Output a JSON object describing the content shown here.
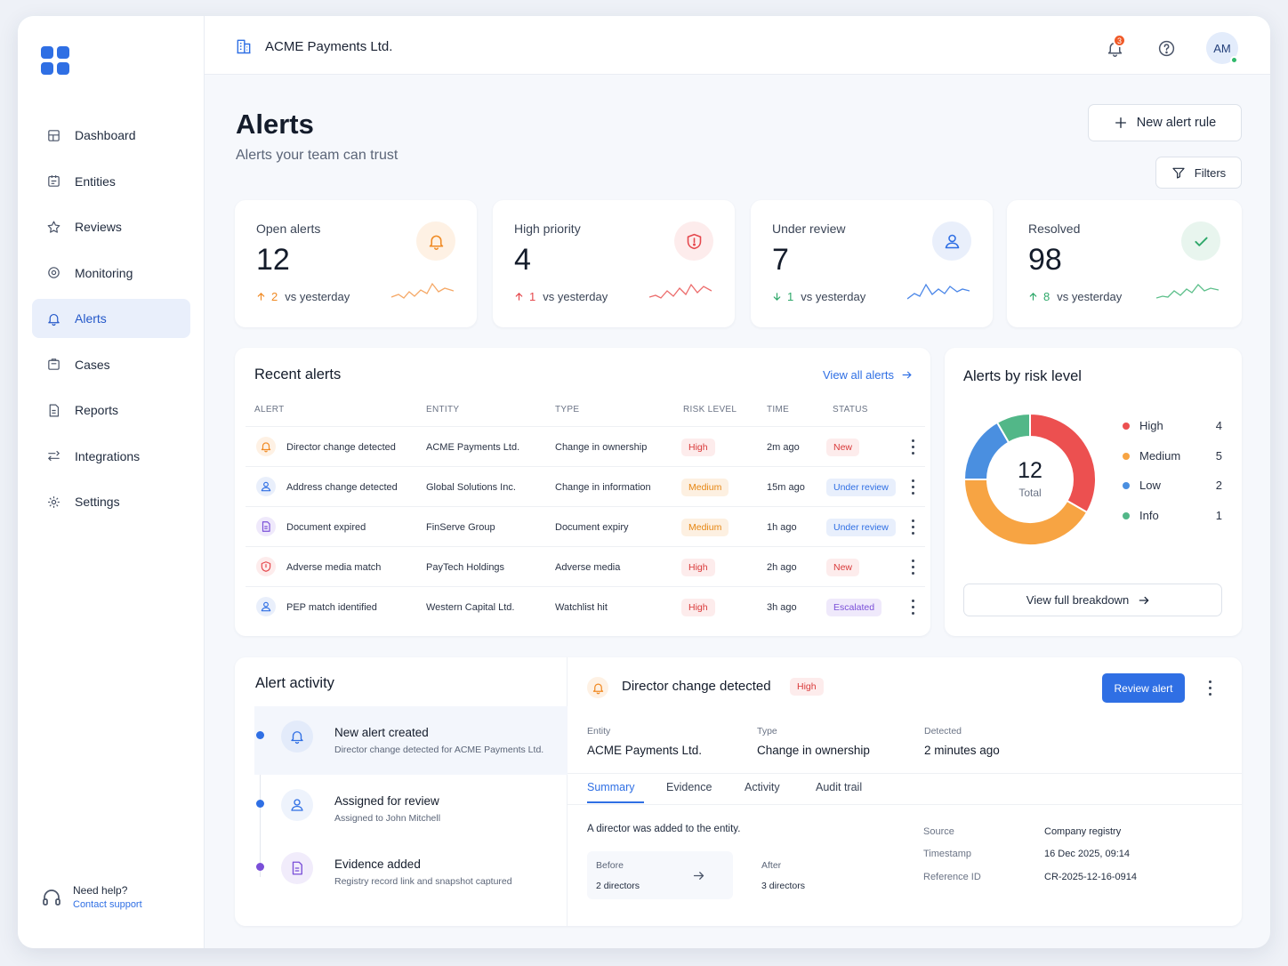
{
  "org": {
    "name": "ACME Payments Ltd."
  },
  "header": {
    "notification_count": "3",
    "avatar_initials": "AM"
  },
  "sidebar": {
    "items": [
      {
        "label": "Dashboard",
        "icon": "dashboard-icon"
      },
      {
        "label": "Entities",
        "icon": "building-icon"
      },
      {
        "label": "Reviews",
        "icon": "star-icon"
      },
      {
        "label": "Monitoring",
        "icon": "monitoring-icon"
      },
      {
        "label": "Alerts",
        "icon": "bell-icon",
        "active": true
      },
      {
        "label": "Cases",
        "icon": "briefcase-icon"
      },
      {
        "label": "Reports",
        "icon": "report-icon"
      },
      {
        "label": "Integrations",
        "icon": "integrations-icon"
      },
      {
        "label": "Settings",
        "icon": "gear-icon"
      }
    ],
    "help": {
      "title": "Need help?",
      "link": "Contact support"
    }
  },
  "page": {
    "title": "Alerts",
    "subtitle": "Alerts your team can trust",
    "new_rule_label": "New alert rule",
    "filters_label": "Filters"
  },
  "stats": [
    {
      "label": "Open alerts",
      "value": "12",
      "delta": "2",
      "compare": "vs yesterday",
      "direction": "up",
      "color": "#f08a24"
    },
    {
      "label": "High priority",
      "value": "4",
      "delta": "1",
      "compare": "vs yesterday",
      "direction": "up",
      "color": "#e5484d"
    },
    {
      "label": "Under review",
      "value": "7",
      "delta": "1",
      "compare": "vs yesterday",
      "direction": "down",
      "color": "#2f6fe4"
    },
    {
      "label": "Resolved",
      "value": "98",
      "delta": "8",
      "compare": "vs yesterday",
      "direction": "up",
      "color": "#2fa86a"
    }
  ],
  "recent": {
    "title": "Recent alerts",
    "view_all": "View all alerts",
    "columns": [
      "ALERT",
      "ENTITY",
      "TYPE",
      "RISK LEVEL",
      "TIME",
      "STATUS"
    ],
    "rows": [
      {
        "alert": "Director change detected",
        "entity": "ACME Payments Ltd.",
        "type": "Change in ownership",
        "risk": "High",
        "time": "2m ago",
        "status": "New",
        "icon": "bell-icon"
      },
      {
        "alert": "Address change detected",
        "entity": "Global Solutions Inc.",
        "type": "Change in information",
        "risk": "Medium",
        "time": "15m ago",
        "status": "Under review",
        "icon": "user-icon"
      },
      {
        "alert": "Document expired",
        "entity": "FinServe Group",
        "type": "Document expiry",
        "risk": "Medium",
        "time": "1h ago",
        "status": "Under review",
        "icon": "document-icon"
      },
      {
        "alert": "Adverse media match",
        "entity": "PayTech Holdings",
        "type": "Adverse media",
        "risk": "High",
        "time": "2h ago",
        "status": "New",
        "icon": "shield-icon"
      },
      {
        "alert": "PEP match identified",
        "entity": "Western Capital Ltd.",
        "type": "Watchlist hit",
        "risk": "High",
        "time": "3h ago",
        "status": "Escalated",
        "icon": "user-icon"
      }
    ]
  },
  "risk": {
    "title": "Alerts by risk level",
    "total_value": "12",
    "total_label": "Total",
    "breakdown_label": "View full breakdown"
  },
  "chart_data": {
    "type": "pie",
    "categories": [
      "High",
      "Medium",
      "Low",
      "Info"
    ],
    "values": [
      4,
      5,
      2,
      1
    ],
    "colors": [
      "#ec5050",
      "#f7a443",
      "#4a8fe0",
      "#52b788"
    ]
  },
  "activity": {
    "title": "Alert activity",
    "items": [
      {
        "title": "New alert created",
        "desc": "Director change detected for ACME Payments Ltd.",
        "icon": "bell-icon",
        "dot": "#2f6fe4"
      },
      {
        "title": "Assigned for review",
        "desc": "Assigned to John Mitchell",
        "icon": "user-icon",
        "dot": "#2f6fe4"
      },
      {
        "title": "Evidence added",
        "desc": "Registry record link and snapshot captured",
        "icon": "document-icon",
        "dot": "#7a4fd8"
      }
    ]
  },
  "detail": {
    "title": "Director change detected",
    "risk": "High",
    "review_label": "Review alert",
    "entity_label": "Entity",
    "entity": "ACME Payments Ltd.",
    "type_label": "Type",
    "type": "Change in ownership",
    "detected_label": "Detected",
    "detected": "2 minutes ago",
    "tabs": [
      "Summary",
      "Evidence",
      "Activity",
      "Audit trail"
    ],
    "summary": "A director was added to the entity.",
    "before_label": "Before",
    "before": "2 directors",
    "after_label": "After",
    "after": "3 directors",
    "meta": [
      {
        "k": "Source",
        "v": "Company registry"
      },
      {
        "k": "Timestamp",
        "v": "16 Dec 2025, 09:14"
      },
      {
        "k": "Reference ID",
        "v": "CR-2025-12-16-0914"
      }
    ]
  }
}
